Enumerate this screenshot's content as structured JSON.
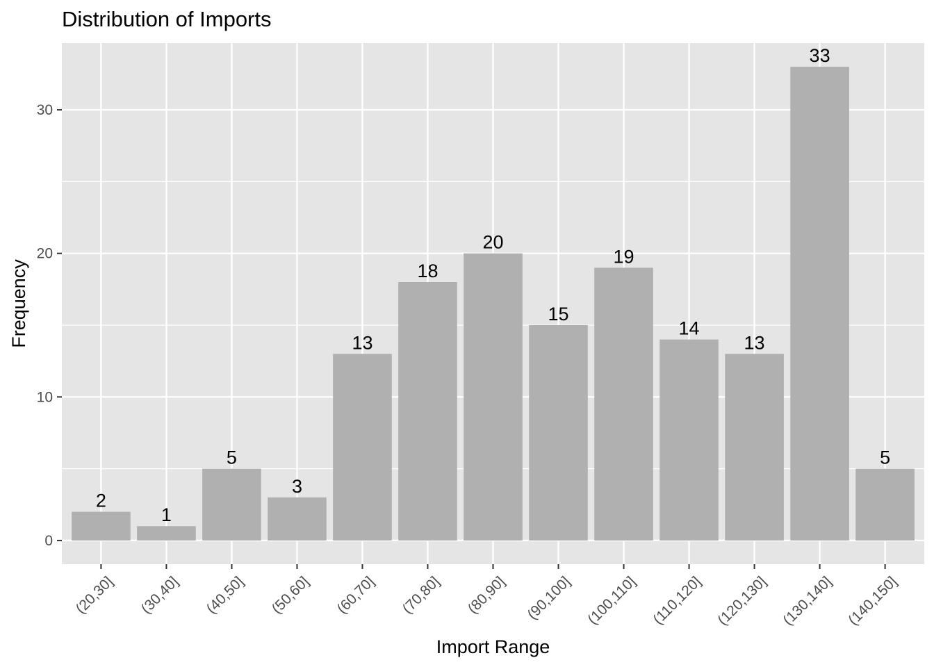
{
  "chart_data": {
    "type": "bar",
    "title": "Distribution of Imports",
    "xlabel": "Import Range",
    "ylabel": "Frequency",
    "categories": [
      "(20,30]",
      "(30,40]",
      "(40,50]",
      "(50,60]",
      "(60,70]",
      "(70,80]",
      "(80,90]",
      "(90,100]",
      "(100,110]",
      "(110,120]",
      "(120,130]",
      "(130,140]",
      "(140,150]"
    ],
    "values": [
      2,
      1,
      5,
      3,
      13,
      18,
      20,
      15,
      19,
      14,
      13,
      33,
      5
    ],
    "data_labels": [
      "2",
      "1",
      "5",
      "3",
      "13",
      "18",
      "20",
      "15",
      "19",
      "14",
      "13",
      "33",
      "5"
    ],
    "ylim": [
      -1.65,
      34.65
    ],
    "yticks": [
      0,
      10,
      20,
      30
    ],
    "ytick_labels": [
      "0",
      "10",
      "20",
      "30"
    ],
    "grid": true,
    "legend": "none",
    "colors": {
      "bar": "#b0b0b0",
      "panel_background": "#e5e5e5",
      "grid": "#ffffff",
      "tick_text": "#4d4d4d",
      "text": "#000000"
    }
  }
}
